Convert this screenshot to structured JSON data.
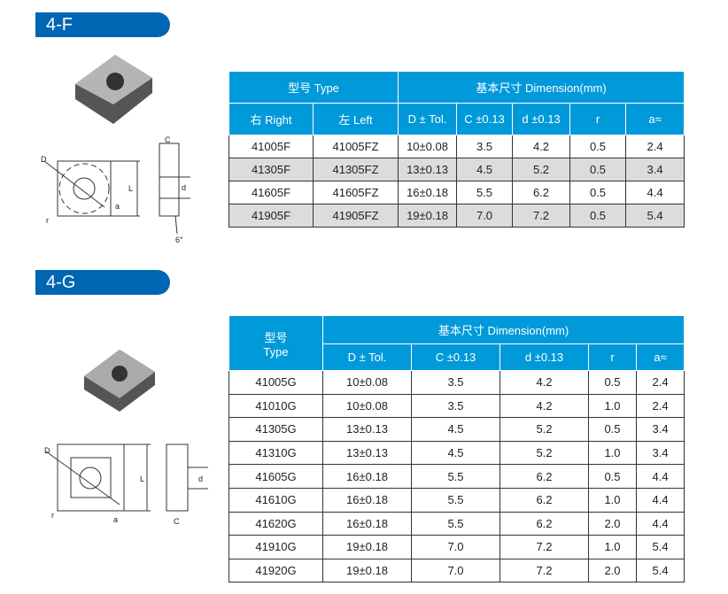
{
  "sections": [
    {
      "badge": "4-F",
      "header": {
        "type": "型号  Type",
        "dimension": "基本尺寸  Dimension(mm)",
        "right": "右  Right",
        "left": "左  Left",
        "cols": [
          "D ± Tol.",
          "C ±0.13",
          "d ±0.13",
          "r",
          "a≈"
        ]
      },
      "rows": [
        [
          "41005F",
          "41005FZ",
          "10±0.08",
          "3.5",
          "4.2",
          "0.5",
          "2.4"
        ],
        [
          "41305F",
          "41305FZ",
          "13±0.13",
          "4.5",
          "5.2",
          "0.5",
          "3.4"
        ],
        [
          "41605F",
          "41605FZ",
          "16±0.18",
          "5.5",
          "6.2",
          "0.5",
          "4.4"
        ],
        [
          "41905F",
          "41905FZ",
          "19±0.18",
          "7.0",
          "7.2",
          "0.5",
          "5.4"
        ]
      ],
      "drawing_labels": {
        "D": "D",
        "r": "r",
        "L": "L",
        "a": "a",
        "C": "C",
        "d": "d",
        "angle": "6°"
      }
    },
    {
      "badge": "4-G",
      "header": {
        "type_cn": "型号",
        "type_en": "Type",
        "dimension": "基本尺寸  Dimension(mm)",
        "cols": [
          "D ± Tol.",
          "C ±0.13",
          "d ±0.13",
          "r",
          "a≈"
        ]
      },
      "rows": [
        [
          "41005G",
          "10±0.08",
          "3.5",
          "4.2",
          "0.5",
          "2.4"
        ],
        [
          "41010G",
          "10±0.08",
          "3.5",
          "4.2",
          "1.0",
          "2.4"
        ],
        [
          "41305G",
          "13±0.13",
          "4.5",
          "5.2",
          "0.5",
          "3.4"
        ],
        [
          "41310G",
          "13±0.13",
          "4.5",
          "5.2",
          "1.0",
          "3.4"
        ],
        [
          "41605G",
          "16±0.18",
          "5.5",
          "6.2",
          "0.5",
          "4.4"
        ],
        [
          "41610G",
          "16±0.18",
          "5.5",
          "6.2",
          "1.0",
          "4.4"
        ],
        [
          "41620G",
          "16±0.18",
          "5.5",
          "6.2",
          "2.0",
          "4.4"
        ],
        [
          "41910G",
          "19±0.18",
          "7.0",
          "7.2",
          "1.0",
          "5.4"
        ],
        [
          "41920G",
          "19±0.18",
          "7.0",
          "7.2",
          "2.0",
          "5.4"
        ]
      ],
      "drawing_labels": {
        "D": "D",
        "r": "r",
        "L": "L",
        "a": "a",
        "C": "C",
        "d": "d"
      }
    }
  ],
  "colors": {
    "badge": "#0066b3",
    "table_header": "#0099d9",
    "alt_row": "#dcdcdc"
  }
}
